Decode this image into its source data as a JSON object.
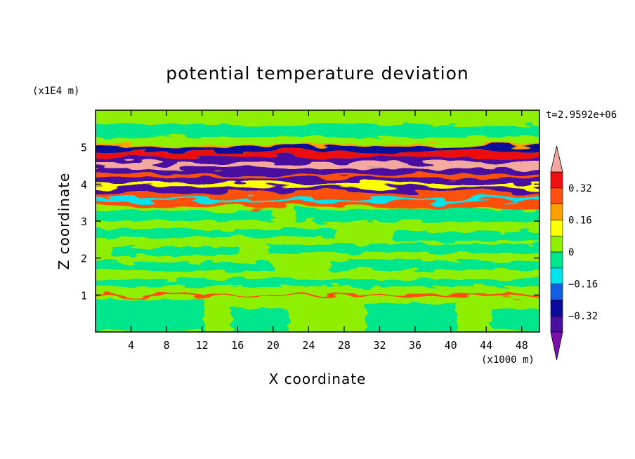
{
  "chart_data": {
    "type": "heatmap",
    "title": "potential temperature deviation",
    "xlabel": "X coordinate",
    "ylabel": "Z coordinate",
    "x_unit": "(x1000 m)",
    "y_unit": "(x1E4 m)",
    "time_label": "t=2.9592e+06",
    "xlim": [
      0,
      50
    ],
    "ylim": [
      0,
      6
    ],
    "x_ticks": [
      4,
      8,
      12,
      16,
      20,
      24,
      28,
      32,
      36,
      40,
      44,
      48
    ],
    "y_ticks": [
      1,
      2,
      3,
      4,
      5
    ],
    "colorbar": {
      "levels": [
        -0.4,
        -0.32,
        -0.24,
        -0.16,
        -0.08,
        0,
        0.08,
        0.16,
        0.24,
        0.32,
        0.4
      ],
      "tick_labels": [
        "0.32",
        "0.16",
        "0",
        "−0.16",
        "−0.32"
      ],
      "colors": [
        "#7a0fae",
        "#4a0fa0",
        "#0a0a9a",
        "#1060e0",
        "#00e4ee",
        "#00e68c",
        "#8ef000",
        "#ffff00",
        "#ffa000",
        "#ff5010",
        "#ee1010",
        "#f4a8a0"
      ]
    },
    "bands": [
      {
        "z": 5.15,
        "value": 0.04
      },
      {
        "z": 5.0,
        "value": 0.2
      },
      {
        "z": 4.95,
        "value": -0.3
      },
      {
        "z": 4.8,
        "value": 0.36
      },
      {
        "z": 4.65,
        "value": -0.36
      },
      {
        "z": 4.5,
        "value": 0.44
      },
      {
        "z": 4.35,
        "value": -0.36
      },
      {
        "z": 4.2,
        "value": 0.3
      },
      {
        "z": 4.1,
        "value": -0.38
      },
      {
        "z": 3.95,
        "value": 0.1
      },
      {
        "z": 3.85,
        "value": -0.38
      },
      {
        "z": 3.7,
        "value": 0.3
      },
      {
        "z": 3.55,
        "value": -0.1
      },
      {
        "z": 3.45,
        "value": 0.28
      },
      {
        "z": 1.0,
        "value": 0.3
      }
    ]
  }
}
